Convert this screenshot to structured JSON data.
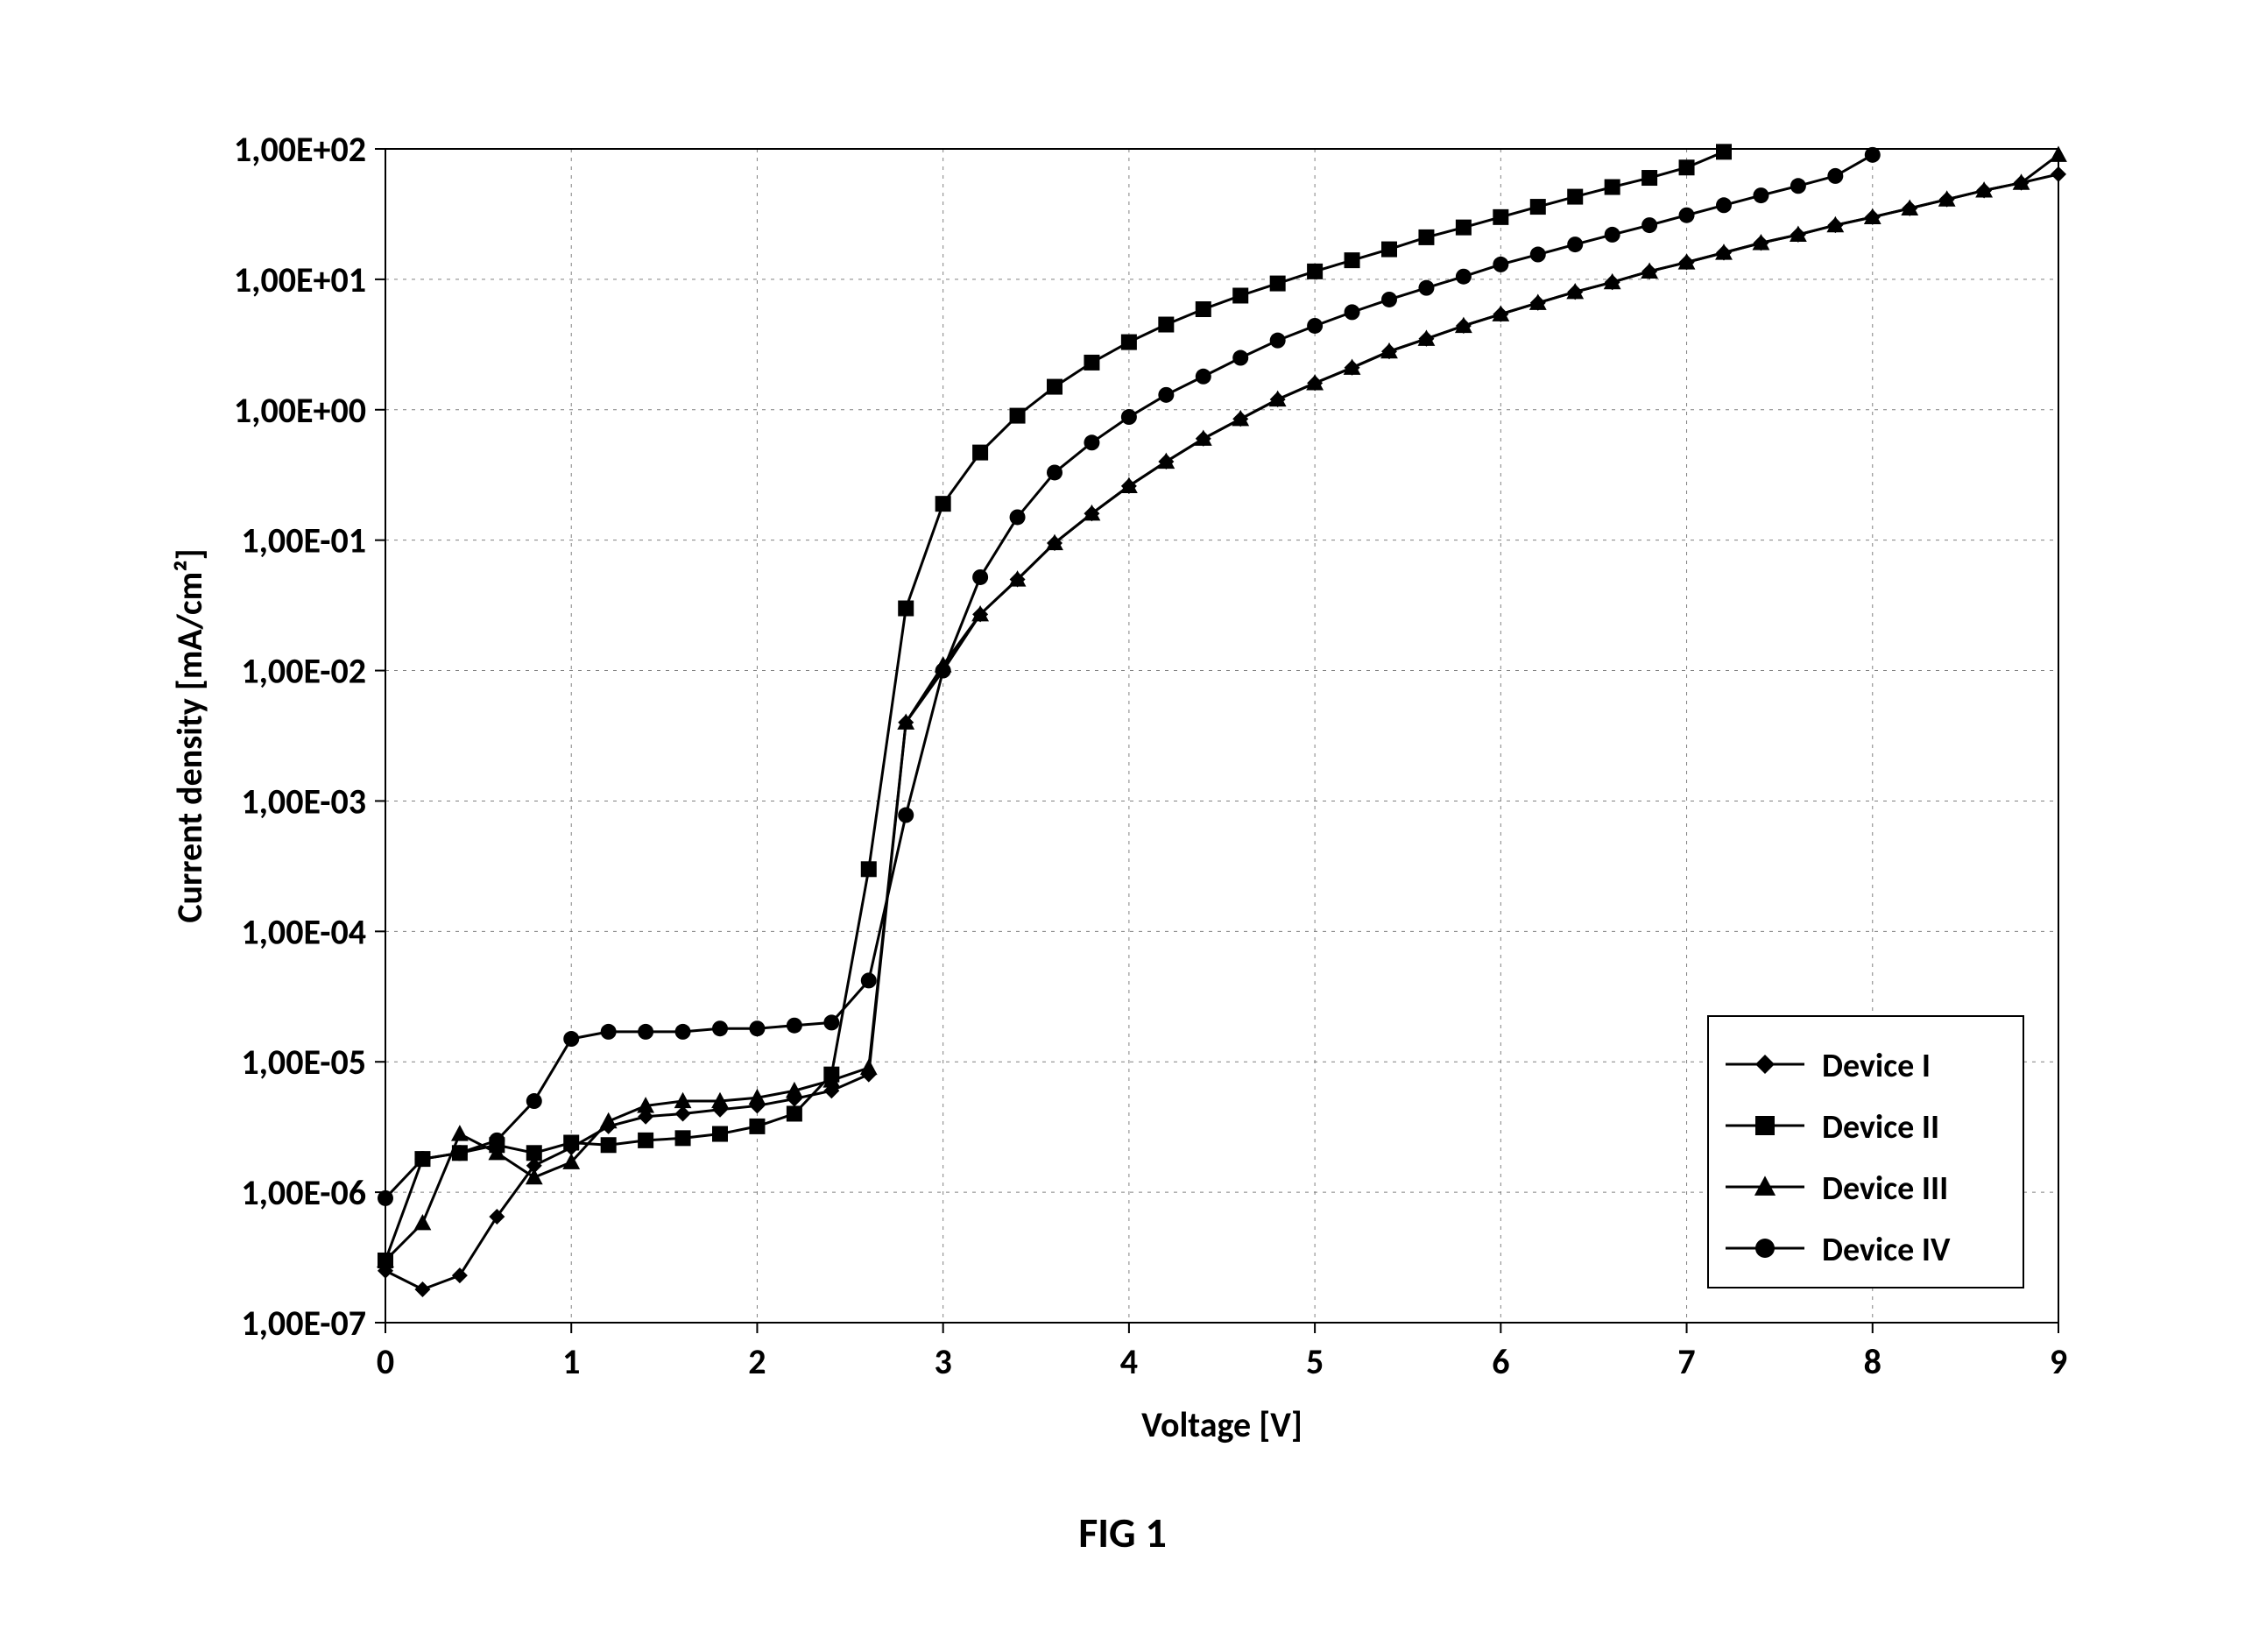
{
  "figure": {
    "caption": "FIG 1",
    "chart": {
      "type": "line",
      "background_color": "#ffffff",
      "plot_border_color": "#000000",
      "plot_border_width": 2,
      "grid_color": "#808080",
      "grid_dash": "4 6",
      "grid_width": 1,
      "xlabel": "Voltage [V]",
      "ylabel": "Current density [mA/cm²]",
      "label_fontsize": 40,
      "label_fontweight": "700",
      "tick_fontsize": 40,
      "tick_fontweight": "700",
      "tick_color": "#000000",
      "xlim": [
        0,
        9
      ],
      "xtick_step": 1,
      "xticks": [
        0,
        1,
        2,
        3,
        4,
        5,
        6,
        7,
        8,
        9
      ],
      "xtick_labels": [
        "0",
        "1",
        "2",
        "3",
        "4",
        "5",
        "6",
        "7",
        "8",
        "9"
      ],
      "yscale": "log",
      "ylim": [
        1e-07,
        100.0
      ],
      "yticks": [
        1e-07,
        1e-06,
        1e-05,
        0.0001,
        0.001,
        0.01,
        0.1,
        1,
        10,
        100
      ],
      "ytick_labels": [
        "1,00E-07",
        "1,00E-06",
        "1,00E-05",
        "1,00E-04",
        "1,00E-03",
        "1,00E-02",
        "1,00E-01",
        "1,00E+00",
        "1,00E+01",
        "1,00E+02"
      ],
      "line_color": "#000000",
      "line_width": 3,
      "marker_size": 9,
      "legend": {
        "position": "bottom-right",
        "border_color": "#000000",
        "border_width": 2,
        "background_color": "#ffffff",
        "fontsize": 38,
        "fontweight": "700",
        "line_sample_length": 90
      },
      "series": [
        {
          "name": "Device I",
          "marker": "diamond",
          "x": [
            0,
            0.2,
            0.4,
            0.6,
            0.8,
            1.0,
            1.2,
            1.4,
            1.6,
            1.8,
            2.0,
            2.2,
            2.4,
            2.6,
            2.8,
            3.0,
            3.2,
            3.4,
            3.6,
            3.8,
            4.0,
            4.2,
            4.4,
            4.6,
            4.8,
            5.0,
            5.2,
            5.4,
            5.6,
            5.8,
            6.0,
            6.2,
            6.4,
            6.6,
            6.8,
            7.0,
            7.2,
            7.4,
            7.6,
            7.8,
            8.0,
            8.2,
            8.4,
            8.6,
            8.8,
            9.0
          ],
          "y": [
            2.5e-07,
            1.8e-07,
            2.3e-07,
            6.5e-07,
            1.6e-06,
            2.2e-06,
            3.2e-06,
            3.8e-06,
            4e-06,
            4.3e-06,
            4.6e-06,
            5.2e-06,
            6e-06,
            8e-06,
            0.004,
            0.01,
            0.027,
            0.05,
            0.095,
            0.16,
            0.26,
            0.4,
            0.6,
            0.85,
            1.2,
            1.6,
            2.1,
            2.8,
            3.5,
            4.4,
            5.4,
            6.6,
            8.0,
            9.5,
            11.5,
            13.5,
            16.0,
            19.0,
            22.0,
            26.0,
            30.0,
            35.0,
            41.0,
            48.0,
            55.0,
            64.0
          ]
        },
        {
          "name": "Device II",
          "marker": "square",
          "x": [
            0,
            0.2,
            0.4,
            0.6,
            0.8,
            1.0,
            1.2,
            1.4,
            1.6,
            1.8,
            2.0,
            2.2,
            2.4,
            2.6,
            2.8,
            3.0,
            3.2,
            3.4,
            3.6,
            3.8,
            4.0,
            4.2,
            4.4,
            4.6,
            4.8,
            5.0,
            5.2,
            5.4,
            5.6,
            5.8,
            6.0,
            6.2,
            6.4,
            6.6,
            6.8,
            7.0,
            7.2
          ],
          "y": [
            3e-07,
            1.8e-06,
            2e-06,
            2.3e-06,
            2e-06,
            2.4e-06,
            2.3e-06,
            2.5e-06,
            2.6e-06,
            2.8e-06,
            3.2e-06,
            4e-06,
            8e-06,
            0.0003,
            0.03,
            0.19,
            0.47,
            0.9,
            1.5,
            2.3,
            3.3,
            4.5,
            5.9,
            7.5,
            9.3,
            11.5,
            14.0,
            17.0,
            21.0,
            25.0,
            30.0,
            36.0,
            43.0,
            51.0,
            60.0,
            72.0,
            95.0
          ]
        },
        {
          "name": "Device III",
          "marker": "triangle",
          "x": [
            0,
            0.2,
            0.4,
            0.6,
            0.8,
            1.0,
            1.2,
            1.4,
            1.6,
            1.8,
            2.0,
            2.2,
            2.4,
            2.6,
            2.8,
            3.0,
            3.2,
            3.4,
            3.6,
            3.8,
            4.0,
            4.2,
            4.4,
            4.6,
            4.8,
            5.0,
            5.2,
            5.4,
            5.6,
            5.8,
            6.0,
            6.2,
            6.4,
            6.6,
            6.8,
            7.0,
            7.2,
            7.4,
            7.6,
            7.8,
            8.0,
            8.2,
            8.4,
            8.6,
            8.8,
            9.0
          ],
          "y": [
            3e-07,
            5.8e-07,
            2.8e-06,
            2e-06,
            1.3e-06,
            1.7e-06,
            3.5e-06,
            4.6e-06,
            5e-06,
            5e-06,
            5.3e-06,
            6e-06,
            7.2e-06,
            9e-06,
            0.004,
            0.011,
            0.027,
            0.05,
            0.095,
            0.16,
            0.26,
            0.4,
            0.6,
            0.85,
            1.2,
            1.6,
            2.1,
            2.8,
            3.5,
            4.4,
            5.4,
            6.6,
            8.0,
            9.5,
            11.5,
            13.5,
            16.0,
            19.0,
            22.0,
            26.0,
            30.0,
            35.0,
            41.0,
            48.0,
            55.0,
            90.0
          ]
        },
        {
          "name": "Device IV",
          "marker": "circle",
          "x": [
            0,
            0.2,
            0.4,
            0.6,
            0.8,
            1.0,
            1.2,
            1.4,
            1.6,
            1.8,
            2.0,
            2.2,
            2.4,
            2.6,
            2.8,
            3.0,
            3.2,
            3.4,
            3.6,
            3.8,
            4.0,
            4.2,
            4.4,
            4.6,
            4.8,
            5.0,
            5.2,
            5.4,
            5.6,
            5.8,
            6.0,
            6.2,
            6.4,
            6.6,
            6.8,
            7.0,
            7.2,
            7.4,
            7.6,
            7.8,
            8.0
          ],
          "y": [
            9e-07,
            1.8e-06,
            2e-06,
            2.5e-06,
            5e-06,
            1.5e-05,
            1.7e-05,
            1.7e-05,
            1.7e-05,
            1.8e-05,
            1.8e-05,
            1.9e-05,
            2e-05,
            4.2e-05,
            0.00078,
            0.01,
            0.052,
            0.15,
            0.33,
            0.56,
            0.88,
            1.3,
            1.8,
            2.5,
            3.4,
            4.4,
            5.6,
            7.0,
            8.6,
            10.5,
            13.0,
            15.5,
            18.5,
            22.0,
            26.0,
            31.0,
            37.0,
            44.0,
            52.0,
            62.0,
            90.0
          ]
        }
      ]
    }
  }
}
